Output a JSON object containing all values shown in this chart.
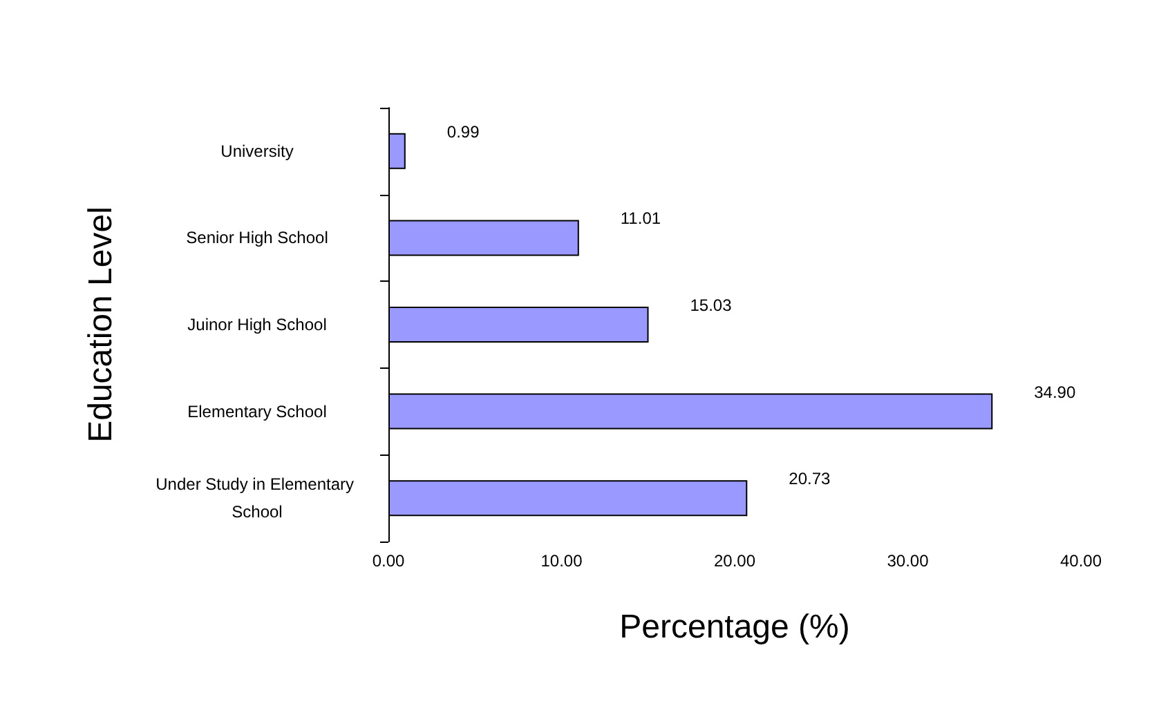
{
  "chart_data": {
    "type": "bar",
    "orientation": "horizontal",
    "xlabel": "Percentage (%)",
    "ylabel": "Education Level",
    "categories": [
      "University",
      "Senior High School",
      "Juinor High School",
      "Elementary School",
      "Under Study in Elementary School"
    ],
    "values": [
      0.99,
      11.01,
      15.03,
      34.9,
      20.73
    ],
    "value_labels": [
      "0.99",
      "11.01",
      "15.03",
      "34.90",
      "20.73"
    ],
    "color": "#9999ff",
    "xlim": [
      0,
      40
    ],
    "xticks": [
      {
        "value": 0,
        "label": "0.00"
      },
      {
        "value": 10,
        "label": "10.00"
      },
      {
        "value": 20,
        "label": "20.00"
      },
      {
        "value": 30,
        "label": "30.00"
      },
      {
        "value": 40,
        "label": "40.00"
      }
    ],
    "grid": false
  }
}
